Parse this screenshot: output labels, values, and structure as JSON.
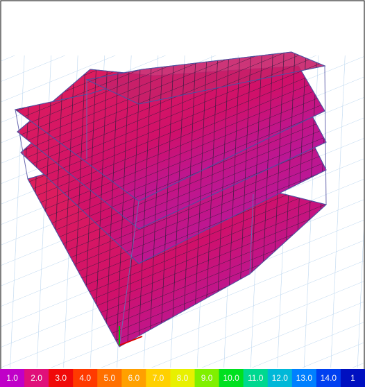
{
  "legend": {
    "labels": [
      "1.0",
      "2.0",
      "3.0",
      "4.0",
      "5.0",
      "6.0",
      "7.0",
      "8.0",
      "9.0",
      "10.0",
      "11.0",
      "12.0",
      "13.0",
      "14.0",
      "1"
    ],
    "colors": [
      "#c000c8",
      "#e0107a",
      "#f00a0a",
      "#ff3a00",
      "#ff7000",
      "#ffa000",
      "#ffd000",
      "#e8f000",
      "#80f000",
      "#00e020",
      "#00d890",
      "#00b8d8",
      "#0080ff",
      "#0040f0",
      "#0010c0"
    ]
  }
}
